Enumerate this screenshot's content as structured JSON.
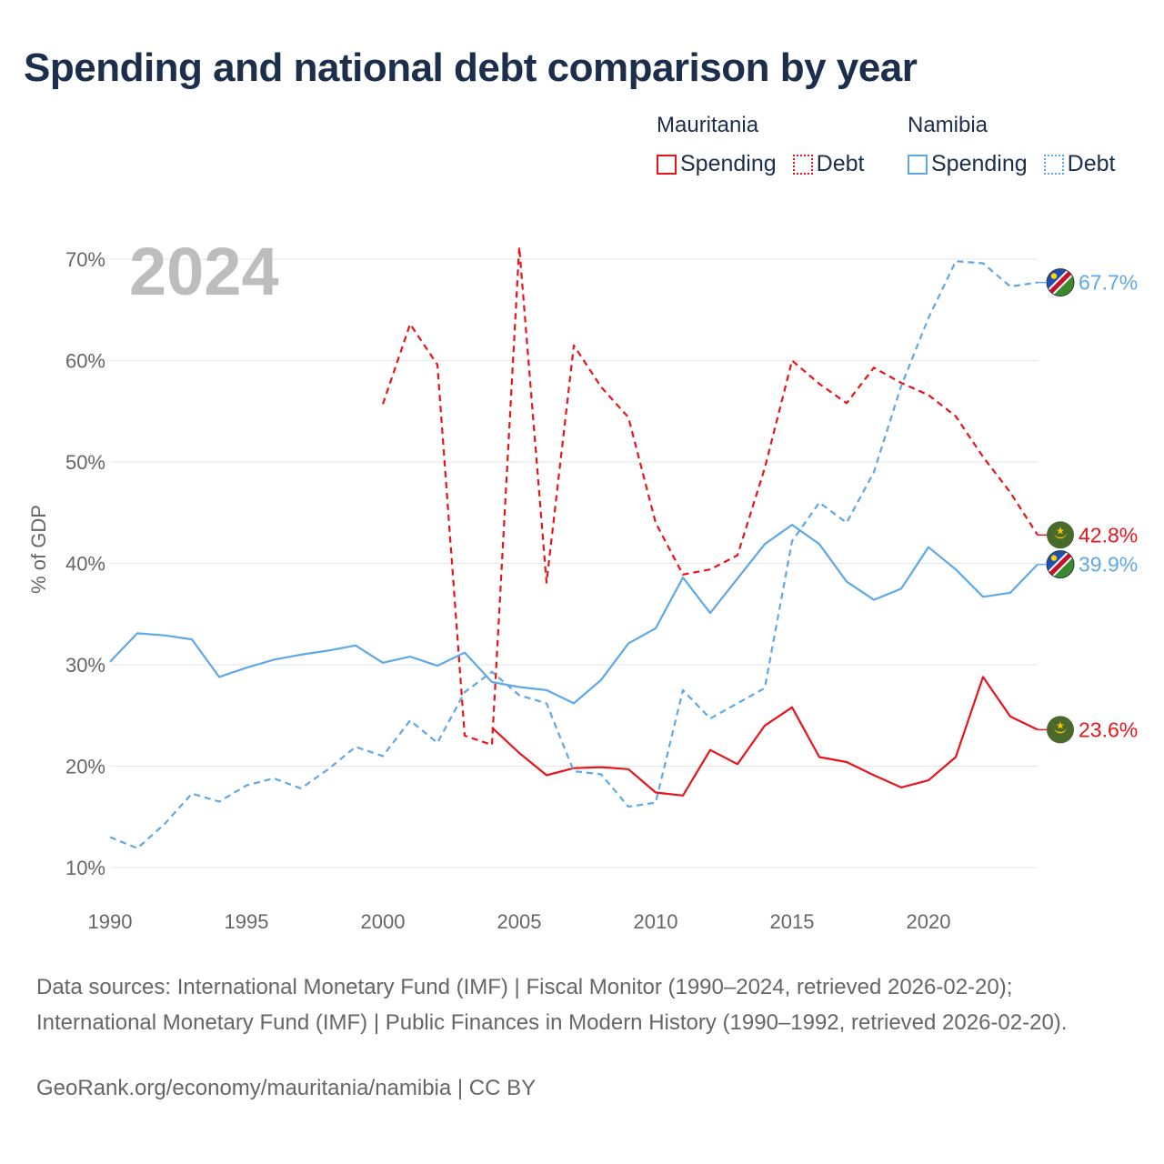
{
  "title": "Spending and national debt comparison by year",
  "legend": {
    "groups": [
      {
        "name": "Mauritania",
        "color": "#e8141b",
        "spending_label": "Spending",
        "debt_label": "Debt"
      },
      {
        "name": "Namibia",
        "color": "#5fa8e6",
        "spending_label": "Spending",
        "debt_label": "Debt"
      }
    ]
  },
  "footer": {
    "sources": "Data sources: International Monetary Fund (IMF) | Fiscal Monitor (1990–2024, retrieved 2026-02-20); International Monetary Fund (IMF) | Public Finances in Modern History (1990–1992, retrieved 2026-02-20).",
    "credit": "GeoRank.org/economy/mauritania/namibia | CC BY"
  },
  "chart_data": {
    "type": "line",
    "year_watermark": "2024",
    "ylabel": "% of GDP",
    "xlim": [
      1990,
      2024
    ],
    "ylim": [
      10,
      70
    ],
    "x_ticks": [
      1990,
      1995,
      2000,
      2005,
      2010,
      2015,
      2020
    ],
    "y_ticks": [
      10,
      20,
      30,
      40,
      50,
      60,
      70
    ],
    "y_tick_labels": [
      "10%",
      "20%",
      "30%",
      "40%",
      "50%",
      "60%",
      "70%"
    ],
    "grid": true,
    "series": [
      {
        "name": "Mauritania Spending",
        "country": "Mauritania",
        "kind": "spending",
        "color": "#e8141b",
        "dashed": false,
        "end_label": "23.6%",
        "x": [
          2004,
          2005,
          2006,
          2007,
          2008,
          2009,
          2010,
          2011,
          2012,
          2013,
          2014,
          2015,
          2016,
          2017,
          2018,
          2019,
          2020,
          2021,
          2022,
          2023,
          2024
        ],
        "values": [
          23.8,
          21.3,
          19.1,
          19.8,
          19.9,
          19.7,
          17.4,
          17.1,
          21.6,
          20.2,
          24.0,
          25.8,
          20.9,
          20.4,
          19.1,
          17.9,
          18.6,
          20.9,
          28.8,
          24.9,
          23.6
        ]
      },
      {
        "name": "Mauritania Debt",
        "country": "Mauritania",
        "kind": "debt",
        "color": "#e8141b",
        "dashed": true,
        "end_label": "42.8%",
        "x": [
          2000,
          2001,
          2002,
          2003,
          2004,
          2005,
          2006,
          2007,
          2008,
          2009,
          2010,
          2011,
          2012,
          2013,
          2014,
          2015,
          2016,
          2017,
          2018,
          2019,
          2020,
          2021,
          2022,
          2023,
          2024
        ],
        "values": [
          55.7,
          63.6,
          59.6,
          23.0,
          22.1,
          71.2,
          38.1,
          61.5,
          57.4,
          54.4,
          44.0,
          38.9,
          39.4,
          40.8,
          49.4,
          60.0,
          57.7,
          55.8,
          59.3,
          57.8,
          56.6,
          54.5,
          50.5,
          47.0,
          42.8
        ]
      },
      {
        "name": "Namibia Spending",
        "country": "Namibia",
        "kind": "spending",
        "color": "#5fa8e6",
        "dashed": false,
        "end_label": "39.9%",
        "x": [
          1990,
          1991,
          1992,
          1993,
          1994,
          1995,
          1996,
          1997,
          1998,
          1999,
          2000,
          2001,
          2002,
          2003,
          2004,
          2005,
          2006,
          2007,
          2008,
          2009,
          2010,
          2011,
          2012,
          2013,
          2014,
          2015,
          2016,
          2017,
          2018,
          2019,
          2020,
          2021,
          2022,
          2023,
          2024
        ],
        "values": [
          30.3,
          33.1,
          32.9,
          32.5,
          28.8,
          29.7,
          30.5,
          31.0,
          31.4,
          31.9,
          30.2,
          30.8,
          29.9,
          31.2,
          28.3,
          27.8,
          27.5,
          26.2,
          28.5,
          32.1,
          33.6,
          38.6,
          35.1,
          38.5,
          41.9,
          43.8,
          41.9,
          38.2,
          36.4,
          37.5,
          41.6,
          39.4,
          36.7,
          37.1,
          39.9
        ]
      },
      {
        "name": "Namibia Debt",
        "country": "Namibia",
        "kind": "debt",
        "color": "#5fa8e6",
        "dashed": true,
        "end_label": "67.7%",
        "x": [
          1990,
          1991,
          1992,
          1993,
          1994,
          1995,
          1996,
          1997,
          1998,
          1999,
          2000,
          2001,
          2002,
          2003,
          2004,
          2005,
          2006,
          2007,
          2008,
          2009,
          2010,
          2011,
          2012,
          2013,
          2014,
          2015,
          2016,
          2017,
          2018,
          2019,
          2020,
          2021,
          2022,
          2023,
          2024
        ],
        "values": [
          13.0,
          11.9,
          14.3,
          17.3,
          16.5,
          18.1,
          18.8,
          17.8,
          19.7,
          21.9,
          21.0,
          24.5,
          22.3,
          27.3,
          29.3,
          27.0,
          26.2,
          19.5,
          19.2,
          16.0,
          16.4,
          27.5,
          24.7,
          26.2,
          27.7,
          42.2,
          46.0,
          44.0,
          49.0,
          57.5,
          64.2,
          69.8,
          69.6,
          67.3,
          67.7
        ]
      }
    ]
  }
}
